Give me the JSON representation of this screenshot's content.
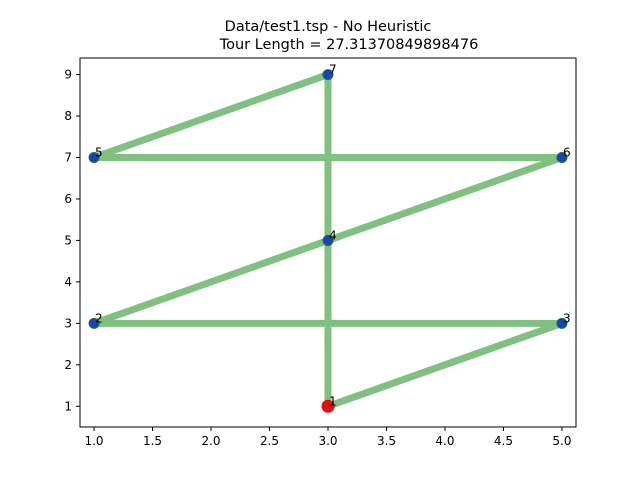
{
  "chart_data": {
    "type": "line",
    "title": "Data/test1.tsp - No Heuristic",
    "subtitle": "Tour Length = 27.31370849898476",
    "xlabel": "",
    "ylabel": "",
    "xlim": [
      0.88,
      5.12
    ],
    "ylim": [
      0.5,
      9.4
    ],
    "x_ticks": [
      "1.0",
      "1.5",
      "2.0",
      "2.5",
      "3.0",
      "3.5",
      "4.0",
      "4.5",
      "5.0"
    ],
    "y_ticks": [
      "1",
      "2",
      "3",
      "4",
      "5",
      "6",
      "7",
      "8",
      "9"
    ],
    "grid": false,
    "points": [
      {
        "label": "1",
        "x": 3,
        "y": 1,
        "start": true
      },
      {
        "label": "2",
        "x": 1,
        "y": 3
      },
      {
        "label": "3",
        "x": 5,
        "y": 3
      },
      {
        "label": "4",
        "x": 3,
        "y": 5
      },
      {
        "label": "5",
        "x": 1,
        "y": 7
      },
      {
        "label": "6",
        "x": 5,
        "y": 7
      },
      {
        "label": "7",
        "x": 3,
        "y": 9
      }
    ],
    "tour": [
      "1",
      "3",
      "2",
      "4",
      "6",
      "5",
      "7",
      "1"
    ],
    "colors": {
      "path": "#80c080",
      "node": "#1f3fbf",
      "node_edge": "#0a7a2a",
      "start_node": "#e01010"
    }
  }
}
